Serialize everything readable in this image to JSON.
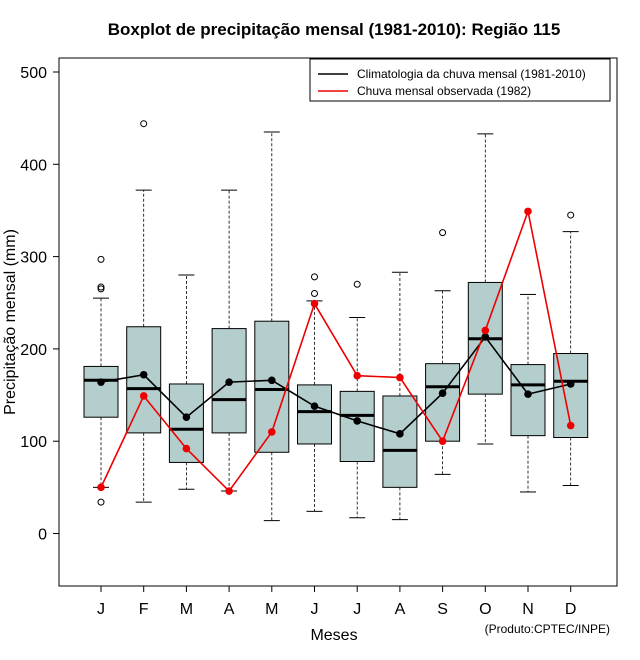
{
  "chart_data": {
    "type": "boxplot",
    "title": "Boxplot de precipitação mensal (1981-2010): Região 115",
    "xlabel": "Meses",
    "ylabel": "Precipitação mensal (mm)",
    "ylim": [
      -60,
      515
    ],
    "yticks": [
      0,
      100,
      200,
      300,
      400,
      500
    ],
    "categories": [
      "J",
      "F",
      "M",
      "A",
      "M",
      "J",
      "J",
      "A",
      "S",
      "O",
      "N",
      "D"
    ],
    "boxes": [
      {
        "whisker_low": 50,
        "q1": 126,
        "median": 166,
        "q3": 181,
        "whisker_high": 255,
        "outliers": [
          34,
          265,
          267,
          297
        ]
      },
      {
        "whisker_low": 34,
        "q1": 109,
        "median": 157,
        "q3": 224,
        "whisker_high": 372,
        "outliers": [
          444
        ]
      },
      {
        "whisker_low": 48,
        "q1": 77,
        "median": 113,
        "q3": 162,
        "whisker_high": 280,
        "outliers": []
      },
      {
        "whisker_low": 46,
        "q1": 109,
        "median": 145,
        "q3": 222,
        "whisker_high": 372,
        "outliers": []
      },
      {
        "whisker_low": 14,
        "q1": 88,
        "median": 156,
        "q3": 230,
        "whisker_high": 435,
        "outliers": []
      },
      {
        "whisker_low": 24,
        "q1": 97,
        "median": 132,
        "q3": 161,
        "whisker_high": 252,
        "outliers": [
          260,
          278
        ]
      },
      {
        "whisker_low": 17,
        "q1": 78,
        "median": 128,
        "q3": 154,
        "whisker_high": 234,
        "outliers": [
          270
        ]
      },
      {
        "whisker_low": 15,
        "q1": 50,
        "median": 90,
        "q3": 149,
        "whisker_high": 283,
        "outliers": []
      },
      {
        "whisker_low": 64,
        "q1": 100,
        "median": 159,
        "q3": 184,
        "whisker_high": 263,
        "outliers": [
          326
        ]
      },
      {
        "whisker_low": 97,
        "q1": 151,
        "median": 211,
        "q3": 272,
        "whisker_high": 433,
        "outliers": []
      },
      {
        "whisker_low": 45,
        "q1": 106,
        "median": 161,
        "q3": 183,
        "whisker_high": 259,
        "outliers": []
      },
      {
        "whisker_low": 52,
        "q1": 104,
        "median": 165,
        "q3": 195,
        "whisker_high": 327,
        "outliers": [
          345
        ]
      }
    ],
    "series": [
      {
        "name": "Climatologia da chuva mensal (1981-2010)",
        "color": "#000000",
        "values": [
          164,
          172,
          126,
          164,
          166,
          138,
          122,
          108,
          152,
          213,
          151,
          162
        ]
      },
      {
        "name": "Chuva mensal observada (1982)",
        "color": "#ee0000",
        "values": [
          50,
          149,
          92,
          46,
          110,
          249,
          171,
          169,
          100,
          220,
          349,
          117
        ]
      }
    ],
    "legend_position": "top-right",
    "box_fill": "#b4cecd",
    "credit": "(Produto:CPTEC/INPE)"
  }
}
